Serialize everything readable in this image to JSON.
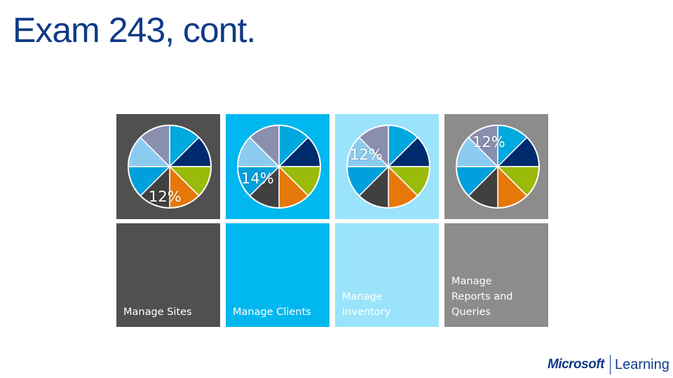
{
  "title": "Exam 243, cont.",
  "colors": {
    "title": "#0f3a87",
    "slice_palette": [
      "#00a8e0",
      "#002a6e",
      "#9bbb0a",
      "#e6780a",
      "#404040",
      "#00a0dc",
      "#8ccbf0",
      "#8a8fb0"
    ]
  },
  "tiles": [
    {
      "label": "Manage Sites",
      "percent_text": "12%",
      "highlight_slice": 3,
      "pie_bg": "#505050",
      "label_bg": "#505050"
    },
    {
      "label": "Manage Clients",
      "percent_text": "14%",
      "highlight_slice": 4,
      "pie_bg": "#00b7ef",
      "label_bg": "#00b7ef"
    },
    {
      "label": "Manage Inventory",
      "percent_text": "12%",
      "highlight_slice": 6,
      "pie_bg": "#9ae3fb",
      "label_bg": "#9ae3fb"
    },
    {
      "label": "Manage Reports and Queries",
      "percent_text": "12%",
      "highlight_slice": 7,
      "pie_bg": "#8c8c8c",
      "label_bg": "#8c8c8c"
    }
  ],
  "logo": {
    "brand": "Microsoft",
    "product": "Learning"
  }
}
